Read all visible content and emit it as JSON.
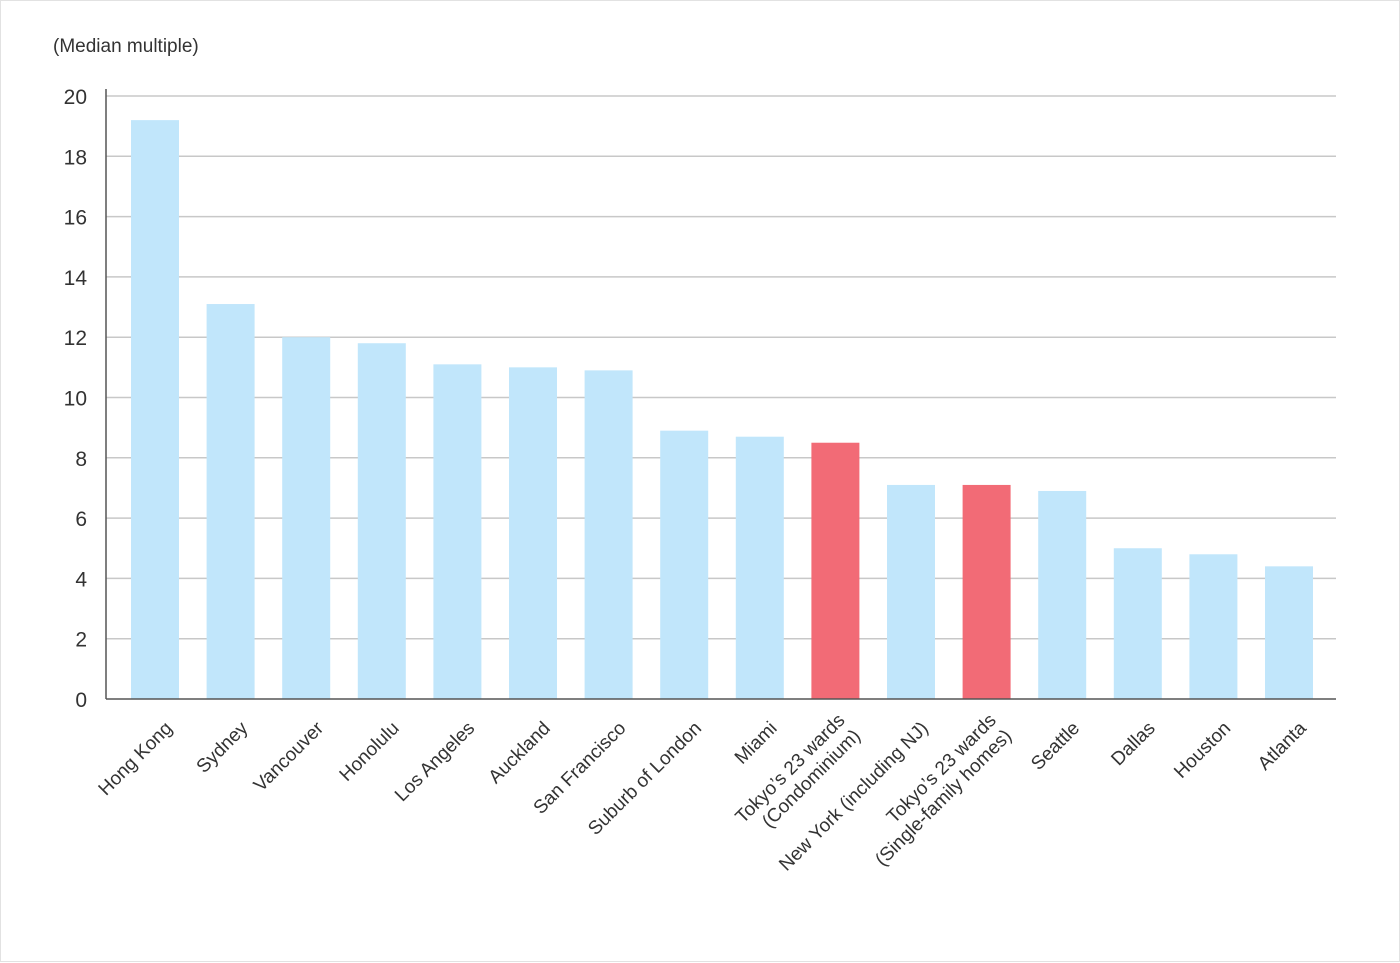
{
  "chart_data": {
    "type": "bar",
    "ylabel": "(Median multiple)",
    "ylim": [
      0,
      20
    ],
    "yticks": [
      0,
      2,
      4,
      6,
      8,
      10,
      12,
      14,
      16,
      18,
      20
    ],
    "grid": true,
    "categories": [
      [
        "Hong Kong"
      ],
      [
        "Sydney"
      ],
      [
        "Vancouver"
      ],
      [
        "Honolulu"
      ],
      [
        "Los Angeles"
      ],
      [
        "Auckland"
      ],
      [
        "San Francisco"
      ],
      [
        "Suburb of London"
      ],
      [
        "Miami"
      ],
      [
        "Tokyo’s 23 wards",
        "(Condominium)"
      ],
      [
        "New York (including NJ)"
      ],
      [
        "Tokyo’s 23 wards",
        "(Single-family homes)"
      ],
      [
        "Seattle"
      ],
      [
        "Dallas"
      ],
      [
        "Houston"
      ],
      [
        "Atlanta"
      ]
    ],
    "values": [
      19.2,
      13.1,
      12.0,
      11.8,
      11.1,
      11.0,
      10.9,
      8.9,
      8.7,
      8.5,
      7.1,
      7.1,
      6.9,
      5.0,
      4.8,
      4.4
    ],
    "highlight": [
      false,
      false,
      false,
      false,
      false,
      false,
      false,
      false,
      false,
      true,
      false,
      true,
      false,
      false,
      false,
      false
    ],
    "colors": {
      "bar": "#c1e6fb",
      "highlight": "#f26b76",
      "grid": "#c8c8c8",
      "axis": "#555555"
    }
  }
}
